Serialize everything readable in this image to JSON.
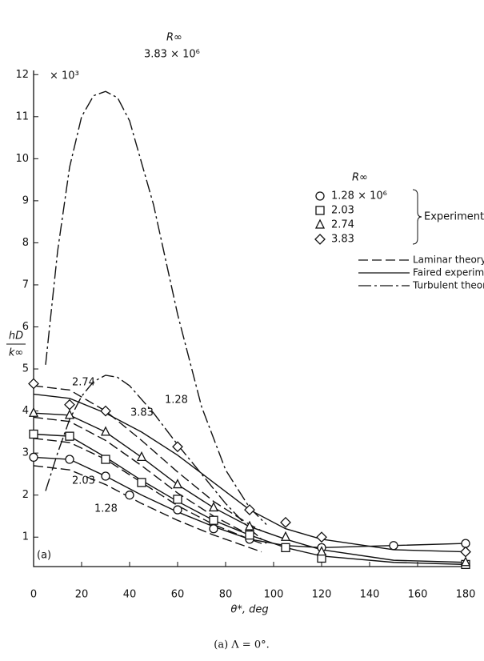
{
  "chart_data": {
    "type": "scatter",
    "y_multiplier": "× 10³",
    "xlabel": "θ*, deg",
    "ylabel_num": "hD",
    "ylabel_den": "k∞",
    "caption": "(a)  Λ = 0°.",
    "panel": "(a)",
    "legend_title": "R∞",
    "group_label": "Experimental data",
    "xlim": [
      0,
      180
    ],
    "ylim": [
      0.3,
      12.1
    ],
    "xticks": [
      0,
      20,
      40,
      60,
      80,
      100,
      120,
      140,
      160,
      180
    ],
    "yticks": [
      1,
      2,
      3,
      4,
      5,
      6,
      7,
      8,
      9,
      10,
      11,
      12
    ],
    "series": [
      {
        "name": "1.28 × 10⁶",
        "marker": "circle",
        "x": [
          0,
          15,
          30,
          40,
          60,
          75,
          90,
          120,
          150,
          180
        ],
        "values": [
          2.9,
          2.85,
          2.45,
          2.0,
          1.65,
          1.2,
          0.95,
          0.75,
          0.8,
          0.85
        ]
      },
      {
        "name": "2.03",
        "marker": "square",
        "x": [
          0,
          15,
          30,
          45,
          60,
          75,
          90,
          105,
          120,
          180
        ],
        "values": [
          3.45,
          3.4,
          2.85,
          2.3,
          1.9,
          1.4,
          1.05,
          0.75,
          0.5,
          0.35
        ]
      },
      {
        "name": "2.74",
        "marker": "triangle",
        "x": [
          0,
          15,
          30,
          45,
          60,
          75,
          90,
          105,
          120,
          180
        ],
        "values": [
          3.95,
          3.9,
          3.5,
          2.9,
          2.25,
          1.7,
          1.25,
          1.0,
          0.65,
          0.4
        ]
      },
      {
        "name": "3.83",
        "marker": "diamond",
        "x": [
          0,
          15,
          30,
          60,
          90,
          105,
          120,
          180
        ],
        "values": [
          4.65,
          4.15,
          4.0,
          3.15,
          1.65,
          1.35,
          1.0,
          0.65
        ]
      }
    ],
    "line_legend": [
      {
        "label": "Laminar theory",
        "style": "dashed"
      },
      {
        "label": "Faired experimental data",
        "style": "solid"
      },
      {
        "label": "Turbulent theory",
        "style": "dashdot"
      }
    ],
    "curves": [
      {
        "style": "solid",
        "x": [
          0,
          15,
          30,
          45,
          60,
          75,
          90,
          105,
          120,
          150,
          180
        ],
        "values": [
          2.9,
          2.85,
          2.45,
          2.0,
          1.6,
          1.25,
          0.95,
          0.8,
          0.75,
          0.8,
          0.85
        ]
      },
      {
        "style": "solid",
        "x": [
          0,
          15,
          30,
          45,
          60,
          75,
          90,
          105,
          120,
          150,
          180
        ],
        "values": [
          3.45,
          3.4,
          2.9,
          2.35,
          1.85,
          1.4,
          1.05,
          0.75,
          0.55,
          0.4,
          0.35
        ]
      },
      {
        "style": "solid",
        "x": [
          0,
          15,
          30,
          45,
          60,
          75,
          90,
          105,
          120,
          150,
          180
        ],
        "values": [
          3.95,
          3.9,
          3.5,
          2.9,
          2.25,
          1.7,
          1.25,
          0.95,
          0.7,
          0.45,
          0.4
        ]
      },
      {
        "style": "solid",
        "x": [
          0,
          15,
          30,
          45,
          60,
          75,
          90,
          105,
          120,
          150,
          180
        ],
        "values": [
          4.4,
          4.3,
          3.95,
          3.5,
          2.95,
          2.3,
          1.65,
          1.2,
          0.95,
          0.7,
          0.65
        ]
      },
      {
        "style": "dashed",
        "x": [
          0,
          15,
          30,
          45,
          60,
          75,
          90,
          95
        ],
        "values": [
          2.7,
          2.6,
          2.25,
          1.8,
          1.4,
          1.05,
          0.75,
          0.65
        ]
      },
      {
        "style": "dashed",
        "x": [
          0,
          15,
          30,
          45,
          60,
          75,
          90,
          95
        ],
        "values": [
          3.35,
          3.25,
          2.85,
          2.3,
          1.75,
          1.3,
          0.95,
          0.85
        ]
      },
      {
        "style": "dashed",
        "x": [
          0,
          15,
          30,
          45,
          60,
          75,
          90,
          95
        ],
        "values": [
          3.85,
          3.75,
          3.3,
          2.7,
          2.05,
          1.5,
          1.05,
          0.95
        ]
      },
      {
        "style": "dashed",
        "x": [
          0,
          15,
          30,
          45,
          60,
          75,
          90,
          95
        ],
        "values": [
          4.6,
          4.5,
          4.0,
          3.3,
          2.55,
          1.85,
          1.3,
          1.15
        ]
      },
      {
        "style": "dashdot",
        "x": [
          5,
          10,
          15,
          20,
          25,
          30,
          35,
          40,
          50,
          60,
          70,
          80,
          90,
          97
        ],
        "values": [
          5.1,
          7.8,
          9.8,
          11.0,
          11.5,
          11.6,
          11.45,
          10.9,
          8.9,
          6.3,
          4.1,
          2.6,
          1.7,
          1.3
        ]
      },
      {
        "style": "dashdot",
        "x": [
          5,
          10,
          15,
          20,
          25,
          30,
          35,
          40,
          50,
          60,
          70,
          80,
          90,
          97
        ],
        "values": [
          2.1,
          3.0,
          3.8,
          4.35,
          4.7,
          4.85,
          4.8,
          4.6,
          3.95,
          3.2,
          2.5,
          1.8,
          1.2,
          0.85
        ]
      }
    ],
    "annotations": [
      "R∞",
      "3.83 × 10⁶",
      "2.74",
      "3.83",
      "1.28",
      "2.03",
      "1.28"
    ]
  }
}
